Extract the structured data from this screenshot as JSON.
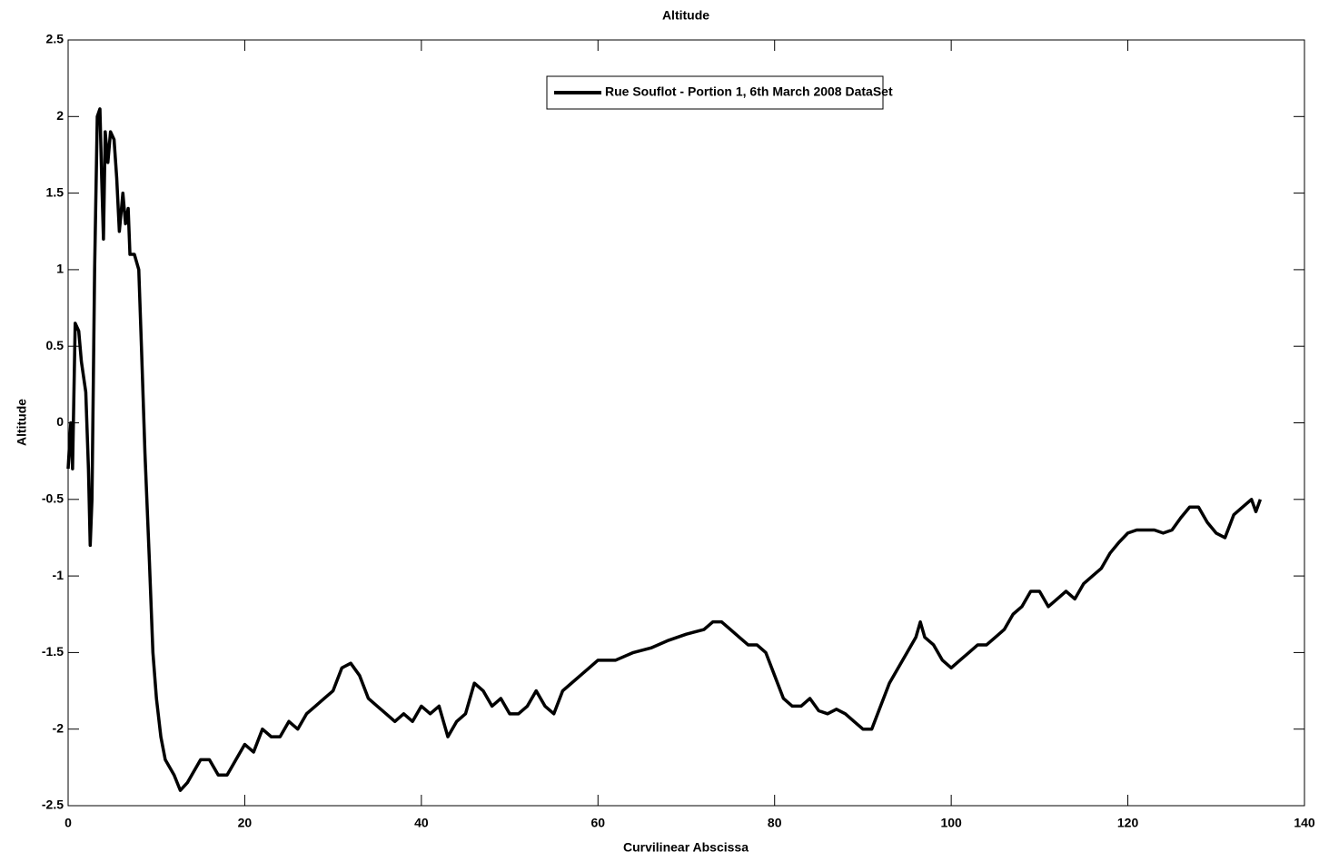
{
  "chart_data": {
    "type": "line",
    "title": "Altitude",
    "x_label": "Curvilinear Abscissa",
    "y_label": "Altitude",
    "x": [
      0,
      0.3,
      0.5,
      0.8,
      1.2,
      1.5,
      2,
      2.3,
      2.5,
      2.7,
      3,
      3.3,
      3.6,
      3.8,
      4.0,
      4.2,
      4.5,
      4.8,
      5.2,
      5.5,
      5.8,
      6.2,
      6.5,
      6.8,
      7.0,
      7.5,
      8.0,
      8.3,
      8.7,
      9.2,
      9.6,
      10,
      10.5,
      11,
      12,
      12.7,
      13.5,
      14,
      15,
      16,
      17,
      18,
      19,
      20,
      21,
      22,
      23,
      24,
      25,
      26,
      27,
      28,
      29,
      30,
      31,
      32,
      33,
      34,
      35,
      36,
      37,
      38,
      39,
      40,
      41,
      42,
      43,
      44,
      45,
      46,
      47,
      48,
      49,
      50,
      51,
      52,
      53,
      54,
      55,
      56,
      57,
      58,
      59,
      60,
      62,
      64,
      66,
      68,
      70,
      72,
      73,
      74,
      75,
      76,
      77,
      78,
      79,
      80,
      81,
      82,
      83,
      84,
      85,
      86,
      87,
      88,
      89,
      90,
      91,
      92,
      93,
      94,
      95,
      96,
      96.5,
      97,
      98,
      99,
      100,
      101,
      102,
      103,
      104,
      105,
      106,
      107,
      108,
      109,
      110,
      111,
      112,
      113,
      114,
      115,
      116,
      117,
      118,
      119,
      120,
      121,
      122,
      123,
      124,
      125,
      126,
      127,
      128,
      129,
      130,
      131,
      132,
      133,
      134,
      134.5,
      135
    ],
    "series": [
      {
        "name": "Rue Souflot - Portion 1, 6th March 2008 DataSet",
        "color": "#000000",
        "values": [
          -0.3,
          0.0,
          -0.3,
          0.65,
          0.6,
          0.4,
          0.2,
          -0.3,
          -0.8,
          -0.5,
          1.0,
          2.0,
          2.05,
          1.6,
          1.2,
          1.9,
          1.7,
          1.9,
          1.85,
          1.6,
          1.25,
          1.5,
          1.3,
          1.4,
          1.1,
          1.1,
          1.0,
          0.5,
          -0.2,
          -0.9,
          -1.5,
          -1.8,
          -2.05,
          -2.2,
          -2.3,
          -2.4,
          -2.35,
          -2.3,
          -2.2,
          -2.2,
          -2.3,
          -2.3,
          -2.2,
          -2.1,
          -2.15,
          -2.0,
          -2.05,
          -2.05,
          -1.95,
          -2.0,
          -1.9,
          -1.85,
          -1.8,
          -1.75,
          -1.6,
          -1.57,
          -1.65,
          -1.8,
          -1.85,
          -1.9,
          -1.95,
          -1.9,
          -1.95,
          -1.85,
          -1.9,
          -1.85,
          -2.05,
          -1.95,
          -1.9,
          -1.7,
          -1.75,
          -1.85,
          -1.8,
          -1.9,
          -1.9,
          -1.85,
          -1.75,
          -1.85,
          -1.9,
          -1.75,
          -1.7,
          -1.65,
          -1.6,
          -1.55,
          -1.55,
          -1.5,
          -1.47,
          -1.42,
          -1.38,
          -1.35,
          -1.3,
          -1.3,
          -1.35,
          -1.4,
          -1.45,
          -1.45,
          -1.5,
          -1.65,
          -1.8,
          -1.85,
          -1.85,
          -1.8,
          -1.88,
          -1.9,
          -1.87,
          -1.9,
          -1.95,
          -2.0,
          -2.0,
          -1.85,
          -1.7,
          -1.6,
          -1.5,
          -1.4,
          -1.3,
          -1.4,
          -1.45,
          -1.55,
          -1.6,
          -1.55,
          -1.5,
          -1.45,
          -1.45,
          -1.4,
          -1.35,
          -1.25,
          -1.2,
          -1.1,
          -1.1,
          -1.2,
          -1.15,
          -1.1,
          -1.15,
          -1.05,
          -1.0,
          -0.95,
          -0.85,
          -0.78,
          -0.72,
          -0.7,
          -0.7,
          -0.7,
          -0.72,
          -0.7,
          -0.62,
          -0.55,
          -0.55,
          -0.65,
          -0.72,
          -0.75,
          -0.6,
          -0.55,
          -0.5,
          -0.58,
          -0.5
        ]
      }
    ],
    "xlim": [
      0,
      140
    ],
    "xticks": [
      0,
      20,
      40,
      60,
      80,
      100,
      120,
      140
    ],
    "ylim": [
      -2.5,
      2.5
    ],
    "yticks": [
      -2.5,
      -2,
      -1.5,
      -1,
      -0.5,
      0,
      0.5,
      1,
      1.5,
      2,
      2.5
    ],
    "grid": false,
    "legend": "top"
  }
}
